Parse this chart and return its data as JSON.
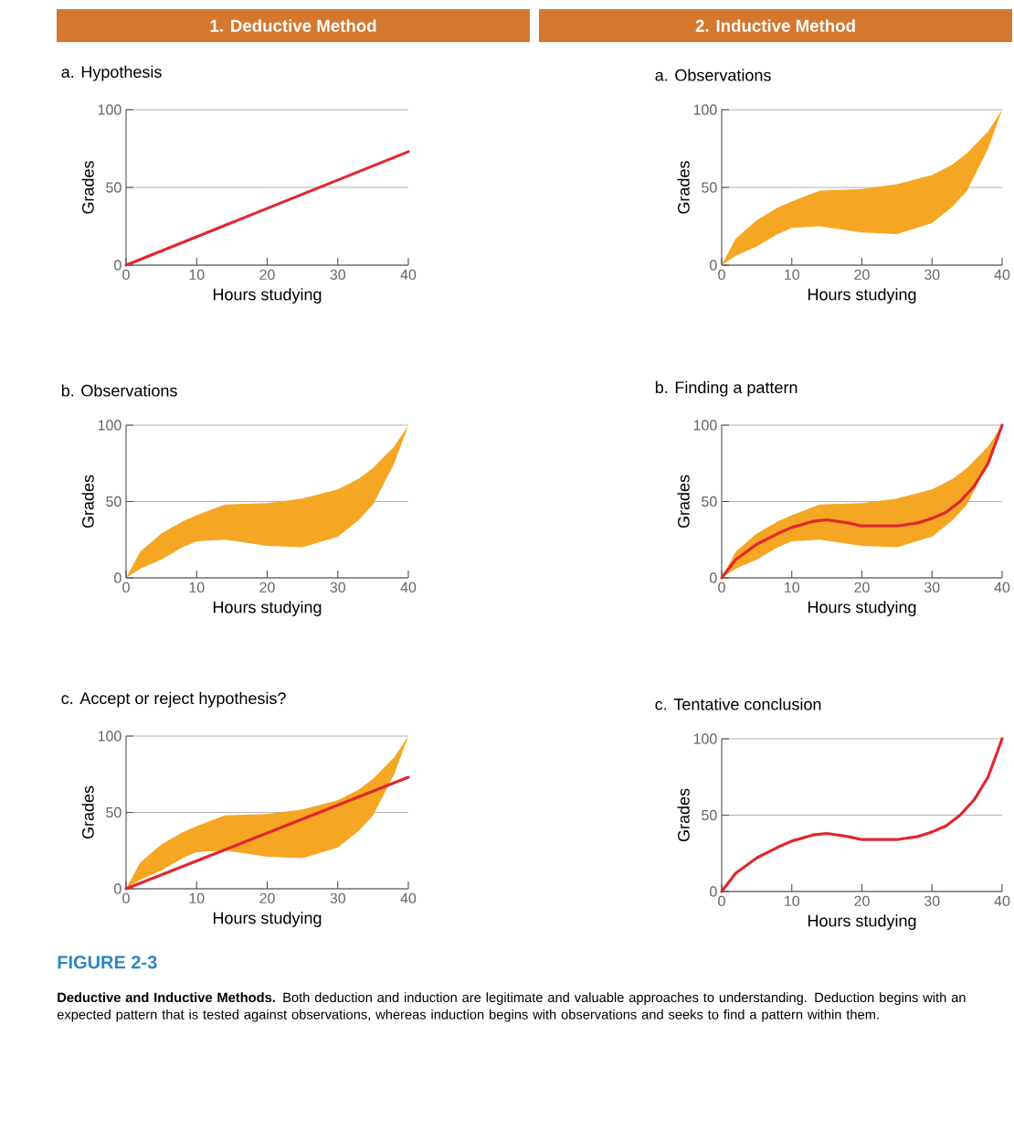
{
  "chart_data": [
    {
      "type": "line",
      "title": "a. Hypothesis",
      "xlabel": "Hours studying",
      "ylabel": "Grades",
      "xlim": [
        0,
        40
      ],
      "ylim": [
        0,
        100
      ],
      "xticks": [
        0,
        10,
        20,
        30,
        40
      ],
      "yticks": [
        0,
        50,
        100
      ],
      "grid": "y",
      "annotations": [
        "1. Deductive Method"
      ],
      "series": [
        {
          "color": "#e0282e",
          "x": [
            0,
            40
          ],
          "values": [
            0,
            73
          ]
        }
      ]
    },
    {
      "type": "area",
      "title": "a. Observations",
      "xlabel": "Hours studying",
      "ylabel": "Grades",
      "xlim": [
        0,
        40
      ],
      "ylim": [
        0,
        100
      ],
      "xticks": [
        0,
        10,
        20,
        30,
        40
      ],
      "yticks": [
        0,
        50,
        100
      ],
      "grid": "y",
      "annotations": [
        "2. Inductive Method"
      ],
      "series": [
        {
          "color": "#f5a623",
          "x": [
            0,
            2,
            5,
            8,
            10,
            14,
            20,
            25,
            30,
            33,
            35,
            38,
            40
          ],
          "values": [
            null,
            null,
            null,
            null,
            null,
            null,
            null,
            null,
            null,
            null,
            null,
            null,
            null
          ],
          "lower": [
            0,
            6,
            12,
            20,
            24,
            25,
            21,
            20,
            27,
            38,
            48,
            75,
            100
          ],
          "upper": [
            0,
            17,
            29,
            37,
            41,
            48,
            49,
            52,
            58,
            65,
            72,
            86,
            100
          ]
        }
      ]
    },
    {
      "type": "area",
      "title": "b. Observations",
      "xlabel": "Hours studying",
      "ylabel": "Grades",
      "xlim": [
        0,
        40
      ],
      "ylim": [
        0,
        100
      ],
      "xticks": [
        0,
        10,
        20,
        30,
        40
      ],
      "yticks": [
        0,
        50,
        100
      ],
      "grid": "y",
      "series": [
        {
          "color": "#f5a623",
          "x": [
            0,
            2,
            5,
            8,
            10,
            14,
            20,
            25,
            30,
            33,
            35,
            38,
            40
          ],
          "values": [
            null,
            null,
            null,
            null,
            null,
            null,
            null,
            null,
            null,
            null,
            null,
            null,
            null
          ],
          "lower": [
            0,
            6,
            12,
            20,
            24,
            25,
            21,
            20,
            27,
            38,
            48,
            75,
            100
          ],
          "upper": [
            0,
            17,
            29,
            37,
            41,
            48,
            49,
            52,
            58,
            65,
            72,
            86,
            100
          ]
        }
      ]
    },
    {
      "type": "area",
      "title": "b. Finding a pattern",
      "xlabel": "Hours studying",
      "ylabel": "Grades",
      "xlim": [
        0,
        40
      ],
      "ylim": [
        0,
        100
      ],
      "xticks": [
        0,
        10,
        20,
        30,
        40
      ],
      "yticks": [
        0,
        50,
        100
      ],
      "grid": "y",
      "series": [
        {
          "color": "#f5a623",
          "x": [
            0,
            2,
            5,
            8,
            10,
            14,
            20,
            25,
            30,
            33,
            35,
            38,
            40
          ],
          "values": [
            null,
            null,
            null,
            null,
            null,
            null,
            null,
            null,
            null,
            null,
            null,
            null,
            null
          ],
          "lower": [
            0,
            6,
            12,
            20,
            24,
            25,
            21,
            20,
            27,
            38,
            48,
            75,
            100
          ],
          "upper": [
            0,
            17,
            29,
            37,
            41,
            48,
            49,
            52,
            58,
            65,
            72,
            86,
            100
          ]
        },
        {
          "type": "line",
          "color": "#e0282e",
          "x": [
            0,
            2,
            5,
            8,
            10,
            13,
            15,
            18,
            20,
            25,
            28,
            30,
            32,
            34,
            36,
            38,
            40
          ],
          "values": [
            0,
            12,
            22,
            29,
            33,
            37,
            38,
            36,
            34,
            34,
            36,
            39,
            43,
            50,
            60,
            75,
            100
          ]
        }
      ]
    },
    {
      "type": "area",
      "title": "c. Accept or reject hypothesis?",
      "xlabel": "Hours studying",
      "ylabel": "Grades",
      "xlim": [
        0,
        40
      ],
      "ylim": [
        0,
        100
      ],
      "xticks": [
        0,
        10,
        20,
        30,
        40
      ],
      "yticks": [
        0,
        50,
        100
      ],
      "grid": "y",
      "series": [
        {
          "color": "#f5a623",
          "x": [
            0,
            2,
            5,
            8,
            10,
            14,
            20,
            25,
            30,
            33,
            35,
            38,
            40
          ],
          "values": [
            null,
            null,
            null,
            null,
            null,
            null,
            null,
            null,
            null,
            null,
            null,
            null,
            null
          ],
          "lower": [
            0,
            6,
            12,
            20,
            24,
            25,
            21,
            20,
            27,
            38,
            48,
            75,
            100
          ],
          "upper": [
            0,
            17,
            29,
            37,
            41,
            48,
            49,
            52,
            58,
            65,
            72,
            86,
            100
          ]
        },
        {
          "type": "line",
          "color": "#e0282e",
          "x": [
            0,
            40
          ],
          "values": [
            0,
            73
          ]
        }
      ]
    },
    {
      "type": "line",
      "title": "c. Tentative conclusion",
      "xlabel": "Hours studying",
      "ylabel": "Grades",
      "xlim": [
        0,
        40
      ],
      "ylim": [
        0,
        100
      ],
      "xticks": [
        0,
        10,
        20,
        30,
        40
      ],
      "yticks": [
        0,
        50,
        100
      ],
      "grid": "y",
      "annotations": [
        "FIGURE 2-3",
        "**Deductive and Inductive Methods.** Both deduction and induction are legitimate and valuable approaches to understanding. Deduction begins with an expected pattern that is tested against observations, whereas induction begins with observations and seeks to find a pattern within them."
      ],
      "series": [
        {
          "color": "#e0282e",
          "x": [
            0,
            2,
            5,
            8,
            10,
            13,
            15,
            18,
            20,
            25,
            28,
            30,
            32,
            34,
            36,
            38,
            40
          ],
          "values": [
            0,
            12,
            22,
            29,
            33,
            37,
            38,
            36,
            34,
            34,
            36,
            39,
            43,
            50,
            60,
            75,
            100
          ]
        }
      ]
    }
  ]
}
